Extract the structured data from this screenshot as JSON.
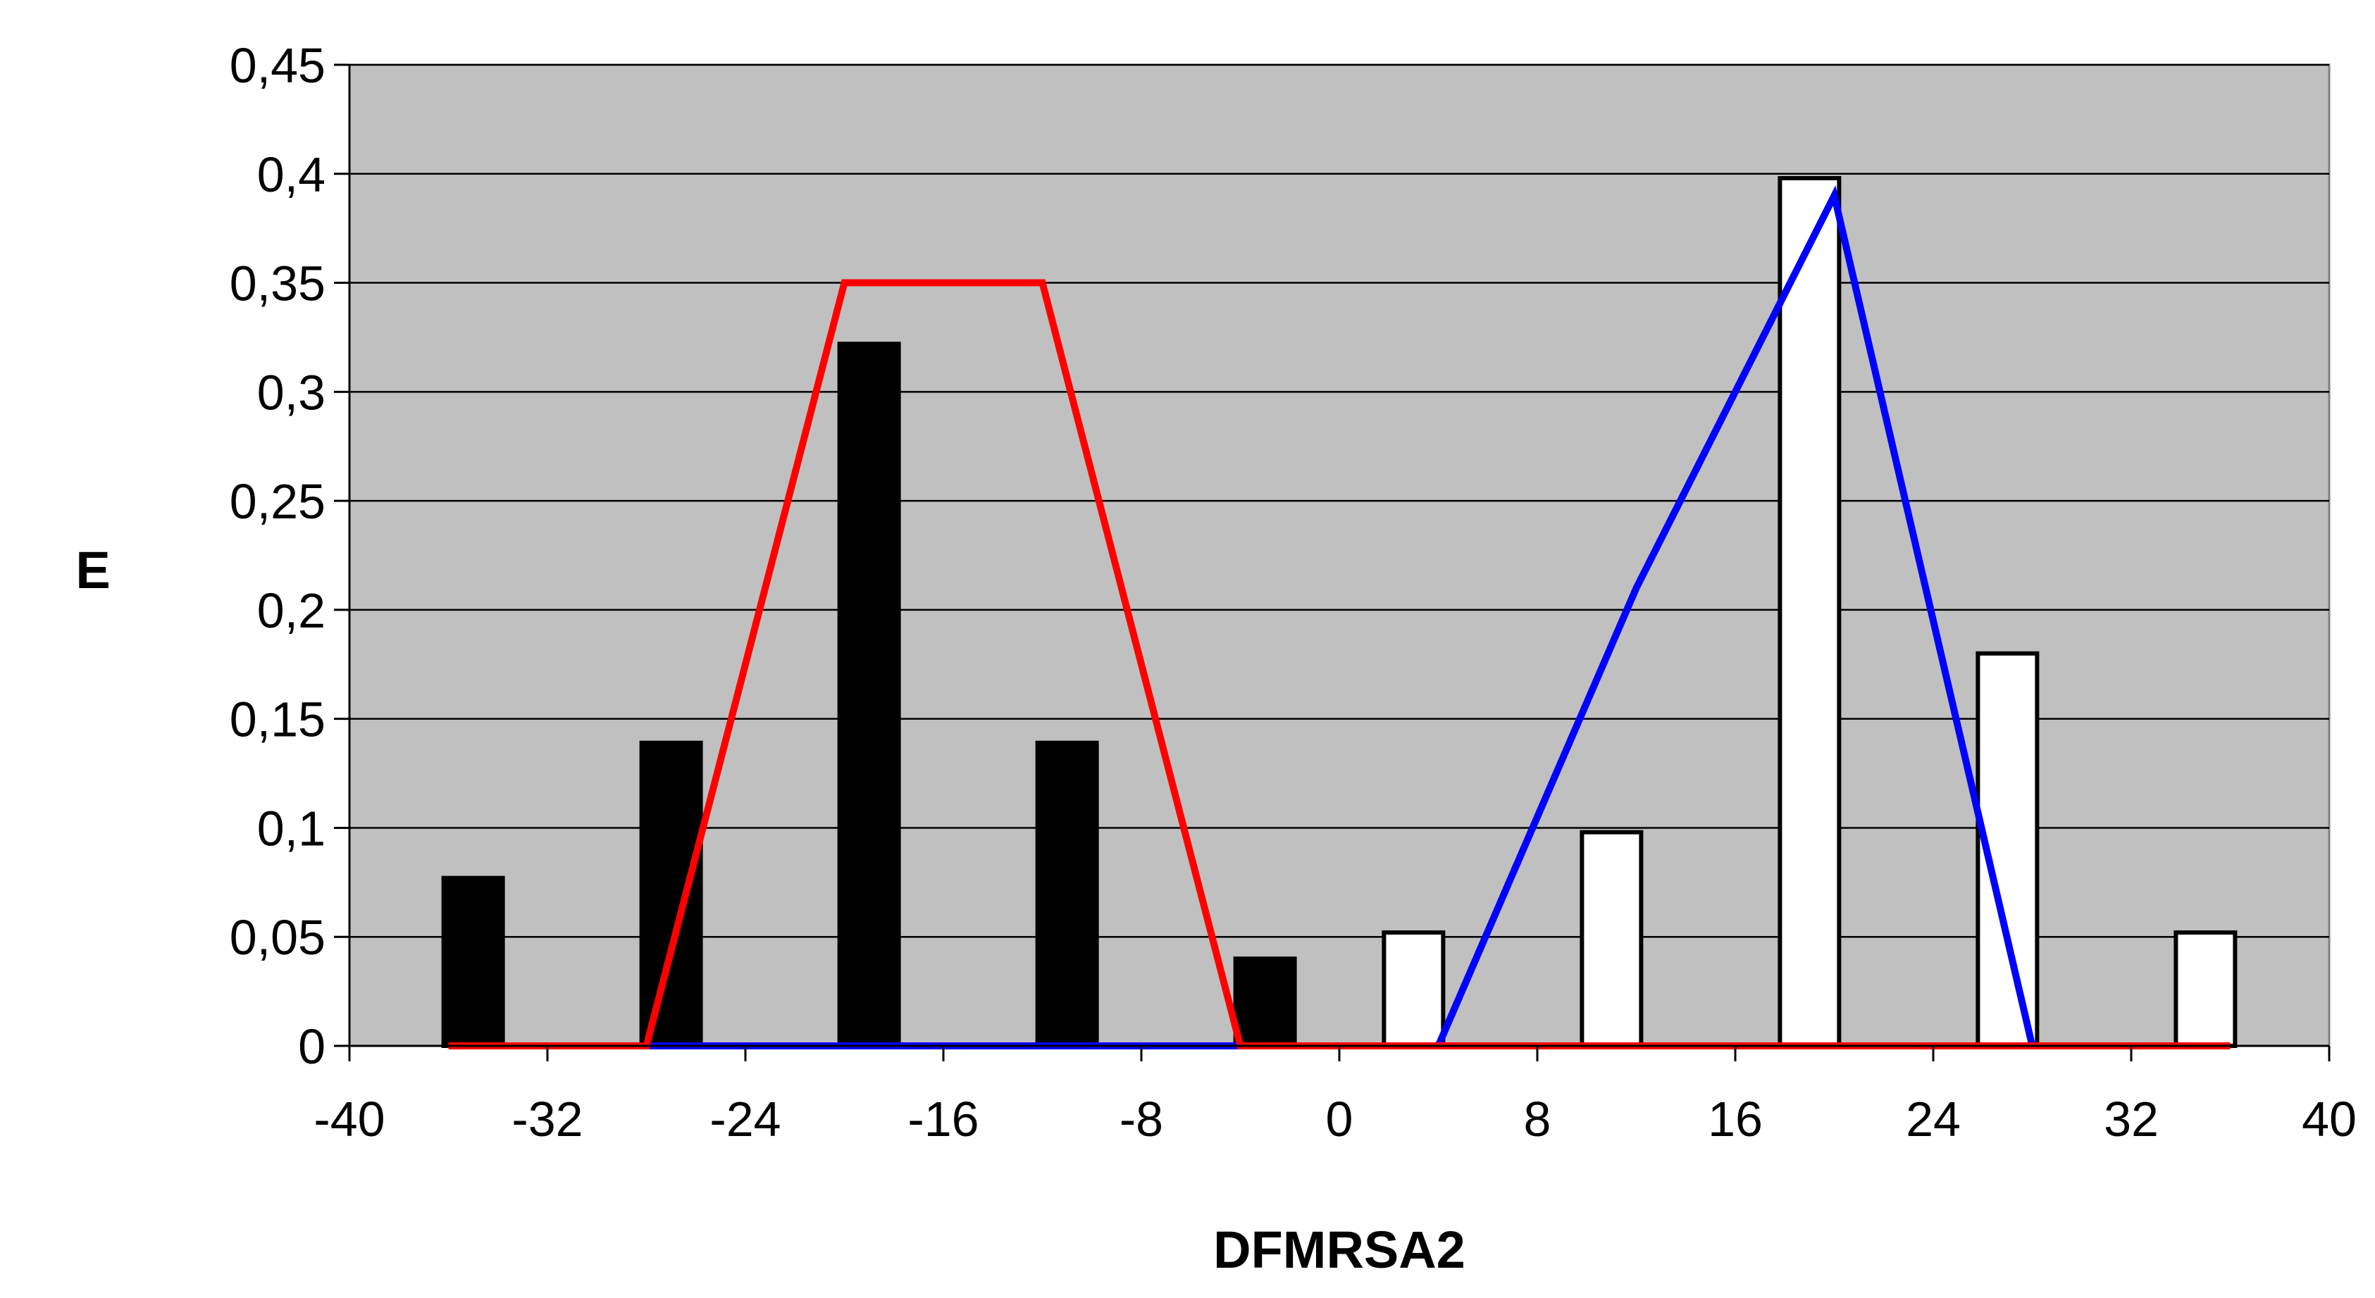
{
  "chart_data": {
    "type": "bar",
    "title": "",
    "xlabel": "DFMRSA2",
    "ylabel": "E",
    "xlim": [
      -40,
      40
    ],
    "ylim": [
      0,
      0.45
    ],
    "x_ticks": [
      -40,
      -32,
      -24,
      -16,
      -8,
      0,
      8,
      16,
      24,
      32,
      40
    ],
    "x_tick_labels": [
      "-40",
      "-32",
      "-24",
      "-16",
      "-8",
      "0",
      "8",
      "16",
      "24",
      "32",
      "40"
    ],
    "y_ticks": [
      0,
      0.05,
      0.1,
      0.15,
      0.2,
      0.25,
      0.3,
      0.35,
      0.4,
      0.45
    ],
    "y_tick_labels": [
      "0",
      "0,05",
      "0,1",
      "0,15",
      "0,2",
      "0,25",
      "0,3",
      "0,35",
      "0,4",
      "0,45"
    ],
    "grid": "horizontal",
    "plot_background": "#c0c0c0",
    "bar_series": [
      {
        "color": "#000000",
        "bars": [
          {
            "x": -35,
            "value": 0.077
          },
          {
            "x": -27,
            "value": 0.139
          },
          {
            "x": -19,
            "value": 0.322
          },
          {
            "x": -11,
            "value": 0.139
          },
          {
            "x": -3,
            "value": 0.04
          }
        ]
      },
      {
        "color": "#ffffff",
        "bars": [
          {
            "x": 3,
            "value": 0.052
          },
          {
            "x": 11,
            "value": 0.098
          },
          {
            "x": 19,
            "value": 0.398
          },
          {
            "x": 27,
            "value": 0.18
          },
          {
            "x": 35,
            "value": 0.052
          }
        ]
      }
    ],
    "line_series": [
      {
        "color": "#0000ff",
        "points": [
          [
            -28,
            0
          ],
          [
            -4,
            0
          ],
          [
            4,
            0
          ],
          [
            12,
            0.21
          ],
          [
            20,
            0.39
          ],
          [
            28,
            0
          ]
        ]
      },
      {
        "color": "#ff0000",
        "points": [
          [
            -36,
            0
          ],
          [
            -28,
            0
          ],
          [
            -20,
            0.35
          ],
          [
            -12,
            0.35
          ],
          [
            -4,
            0
          ],
          [
            36,
            0
          ]
        ]
      }
    ]
  }
}
